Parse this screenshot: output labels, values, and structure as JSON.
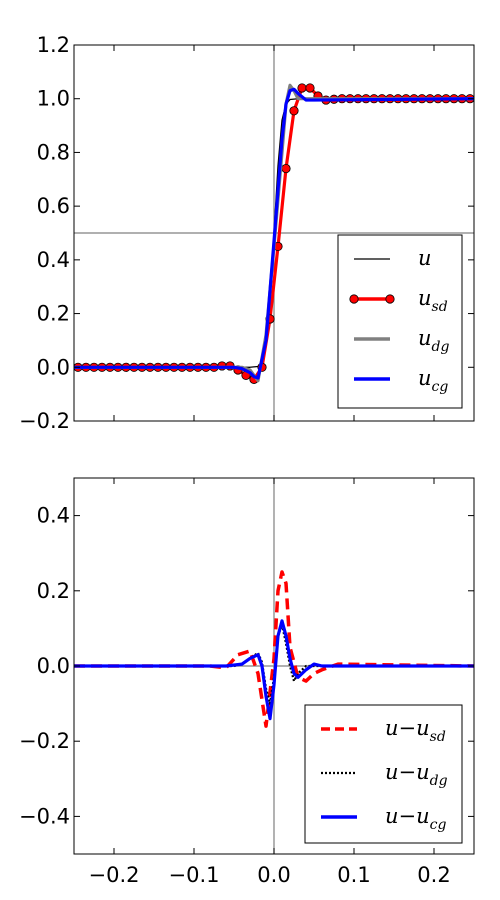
{
  "chart_data": [
    {
      "type": "line",
      "xlim": [
        -0.25,
        0.25
      ],
      "ylim": [
        -0.2,
        1.2
      ],
      "yticks": [
        -0.2,
        0.0,
        0.2,
        0.4,
        0.6,
        0.8,
        1.0,
        1.2
      ],
      "ytick_labels": [
        "−0.2",
        "0.0",
        "0.2",
        "0.4",
        "0.6",
        "0.8",
        "1.0",
        "1.2"
      ],
      "xticks": [
        -0.2,
        -0.1,
        0.0,
        0.1,
        0.2
      ],
      "reference_lines": {
        "vertical_x": 0.0,
        "horizontal_y": 0.5
      },
      "legend": {
        "placement": "lower-right",
        "entries": [
          {
            "main": "u",
            "sub": ""
          },
          {
            "main": "u",
            "sub": "sd"
          },
          {
            "main": "u",
            "sub": "dg"
          },
          {
            "main": "u",
            "sub": "cg"
          }
        ]
      },
      "series": [
        {
          "name": "u",
          "color": "#000000",
          "style": "thin-solid",
          "x": [
            -0.25,
            -0.03,
            -0.02,
            -0.015,
            -0.01,
            -0.005,
            0.0,
            0.005,
            0.01,
            0.015,
            0.02,
            0.03,
            0.25
          ],
          "y": [
            0.0,
            0.0,
            0.003,
            0.02,
            0.08,
            0.25,
            0.5,
            0.75,
            0.92,
            0.98,
            0.997,
            1.0,
            1.0
          ]
        },
        {
          "name": "u_sd",
          "color": "#ff0000",
          "style": "solid-markers",
          "x": [
            -0.245,
            -0.235,
            -0.225,
            -0.215,
            -0.205,
            -0.195,
            -0.185,
            -0.175,
            -0.165,
            -0.155,
            -0.145,
            -0.135,
            -0.125,
            -0.115,
            -0.105,
            -0.095,
            -0.085,
            -0.075,
            -0.065,
            -0.055,
            -0.045,
            -0.035,
            -0.025,
            -0.015,
            -0.005,
            0.005,
            0.015,
            0.025,
            0.035,
            0.045,
            0.055,
            0.065,
            0.075,
            0.085,
            0.095,
            0.105,
            0.115,
            0.125,
            0.135,
            0.145,
            0.155,
            0.165,
            0.175,
            0.185,
            0.195,
            0.205,
            0.215,
            0.225,
            0.235,
            0.245
          ],
          "y": [
            0,
            0,
            0,
            0,
            0,
            0,
            0,
            0,
            0,
            0,
            0,
            0,
            0,
            0,
            0,
            0,
            0,
            0,
            0.005,
            0.005,
            -0.01,
            -0.03,
            -0.045,
            0.0,
            0.18,
            0.45,
            0.74,
            0.955,
            1.04,
            1.04,
            1.01,
            0.995,
            0.998,
            1.0,
            1.0,
            1.0,
            1.0,
            1.0,
            1.0,
            1.0,
            1.0,
            1.0,
            1.0,
            1.0,
            1.0,
            1.0,
            1.0,
            1.0,
            1.0,
            1.0
          ]
        },
        {
          "name": "u_dg",
          "color": "#808080",
          "style": "thick-solid",
          "x": [
            -0.25,
            -0.04,
            -0.03,
            -0.025,
            -0.02,
            -0.01,
            0.0,
            0.01,
            0.015,
            0.02,
            0.025,
            0.03,
            0.04,
            0.25
          ],
          "y": [
            0.0,
            0.0,
            -0.01,
            -0.03,
            -0.05,
            0.12,
            0.45,
            0.8,
            0.98,
            1.05,
            1.03,
            1.0,
            1.0,
            1.0
          ]
        },
        {
          "name": "u_cg",
          "color": "#0000ff",
          "style": "thick-solid",
          "x": [
            -0.25,
            -0.05,
            -0.04,
            -0.03,
            -0.025,
            -0.02,
            -0.01,
            0.0,
            0.01,
            0.015,
            0.02,
            0.025,
            0.03,
            0.04,
            0.05,
            0.25
          ],
          "y": [
            0.0,
            0.0,
            -0.005,
            -0.02,
            -0.035,
            -0.04,
            0.1,
            0.47,
            0.85,
            0.98,
            1.03,
            1.035,
            1.02,
            0.995,
            0.995,
            1.0
          ]
        }
      ]
    },
    {
      "type": "line",
      "xlim": [
        -0.25,
        0.25
      ],
      "ylim": [
        -0.5,
        0.5
      ],
      "yticks": [
        -0.4,
        -0.2,
        0.0,
        0.2,
        0.4
      ],
      "ytick_labels": [
        "−0.4",
        "−0.2",
        "0.0",
        "0.2",
        "0.4"
      ],
      "xticks": [
        -0.2,
        -0.1,
        0.0,
        0.1,
        0.2
      ],
      "xtick_labels": [
        "−0.2",
        "−0.1",
        "0.0",
        "0.1",
        "0.2"
      ],
      "reference_lines": {
        "vertical_x": 0.0,
        "horizontal_y": 0.0
      },
      "legend": {
        "placement": "lower-right",
        "entries": [
          {
            "main": "u−u",
            "sub": "sd"
          },
          {
            "main": "u−u",
            "sub": "dg"
          },
          {
            "main": "u−u",
            "sub": "cg"
          }
        ]
      },
      "series": [
        {
          "name": "u-u_sd",
          "color": "#ff0000",
          "style": "dashed",
          "x": [
            -0.25,
            -0.08,
            -0.06,
            -0.045,
            -0.03,
            -0.02,
            -0.01,
            0.0,
            0.005,
            0.01,
            0.015,
            0.02,
            0.03,
            0.04,
            0.05,
            0.06,
            0.08,
            0.25
          ],
          "y": [
            0.0,
            0.0,
            -0.005,
            0.03,
            0.04,
            -0.02,
            -0.16,
            0.02,
            0.2,
            0.25,
            0.22,
            0.05,
            -0.03,
            -0.04,
            -0.02,
            -0.01,
            0.005,
            0.0
          ]
        },
        {
          "name": "u-u_dg",
          "color": "#000000",
          "style": "dotted",
          "x": [
            -0.25,
            -0.05,
            -0.04,
            -0.03,
            -0.02,
            -0.015,
            -0.01,
            -0.005,
            0.0,
            0.005,
            0.01,
            0.015,
            0.02,
            0.025,
            0.03,
            0.04,
            0.25
          ],
          "y": [
            0.0,
            0.0,
            0.005,
            0.02,
            0.035,
            0.01,
            -0.06,
            -0.1,
            -0.03,
            0.08,
            0.11,
            0.06,
            0.0,
            -0.04,
            -0.02,
            0.0,
            0.0
          ]
        },
        {
          "name": "u-u_cg",
          "color": "#0000ff",
          "style": "thick-solid",
          "x": [
            -0.25,
            -0.06,
            -0.04,
            -0.03,
            -0.02,
            -0.015,
            -0.01,
            -0.005,
            0.0,
            0.005,
            0.01,
            0.015,
            0.02,
            0.025,
            0.03,
            0.04,
            0.05,
            0.06,
            0.25
          ],
          "y": [
            0.0,
            0.0,
            0.005,
            0.02,
            0.03,
            0.0,
            -0.08,
            -0.14,
            -0.05,
            0.08,
            0.12,
            0.08,
            0.02,
            -0.02,
            -0.03,
            -0.01,
            0.005,
            0.0,
            0.0
          ]
        }
      ]
    }
  ]
}
